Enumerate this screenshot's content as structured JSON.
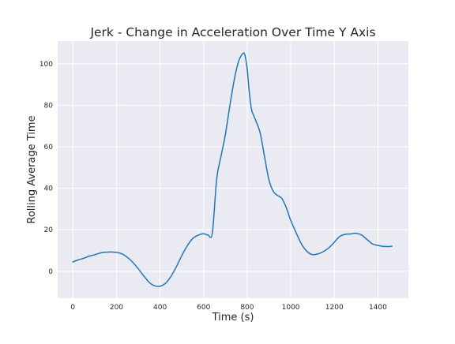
{
  "chart_data": {
    "type": "line",
    "title": "Jerk - Change in Acceleration Over Time Y Axis",
    "xlabel": "Time (s)",
    "ylabel": "Rolling Average Time",
    "xlim": [
      -70,
      1540
    ],
    "ylim": [
      -13,
      111
    ],
    "xticks": [
      0,
      200,
      400,
      600,
      800,
      1000,
      1200,
      1400
    ],
    "yticks": [
      0,
      20,
      40,
      60,
      80,
      100
    ],
    "grid": true,
    "legend": "none",
    "colors": {
      "plot_background": "#EAEAF2",
      "line": "#1F77B4",
      "text": "#262626"
    },
    "series": [
      {
        "x": [
          0,
          25,
          50,
          75,
          100,
          125,
          150,
          175,
          200,
          225,
          250,
          275,
          300,
          325,
          350,
          375,
          400,
          425,
          450,
          475,
          500,
          525,
          550,
          575,
          600,
          620,
          640,
          660,
          680,
          700,
          720,
          740,
          760,
          780,
          790,
          800,
          810,
          820,
          830,
          840,
          860,
          880,
          900,
          920,
          940,
          960,
          980,
          1000,
          1025,
          1050,
          1075,
          1100,
          1125,
          1150,
          1175,
          1200,
          1225,
          1250,
          1275,
          1300,
          1325,
          1350,
          1375,
          1400,
          1425,
          1450,
          1465
        ],
        "values": [
          4.5,
          5.5,
          6.3,
          7.3,
          8.0,
          8.8,
          9.2,
          9.3,
          9.1,
          8.4,
          6.7,
          4.3,
          1.2,
          -2.2,
          -5.3,
          -7.0,
          -7.2,
          -5.8,
          -2.5,
          2.2,
          7.6,
          12.3,
          15.8,
          17.4,
          18.1,
          17.5,
          18.5,
          44.5,
          55.5,
          66.0,
          79.5,
          92.0,
          101.0,
          105.0,
          104.0,
          97.5,
          86.0,
          78.0,
          75.0,
          72.5,
          66.5,
          55.0,
          44.0,
          38.5,
          36.5,
          35.0,
          30.5,
          24.5,
          18.5,
          13.0,
          9.5,
          8.0,
          8.4,
          9.5,
          11.3,
          14.0,
          16.8,
          17.8,
          18.0,
          18.3,
          17.5,
          15.3,
          13.2,
          12.5,
          12.0,
          11.9,
          12.1
        ]
      }
    ]
  }
}
